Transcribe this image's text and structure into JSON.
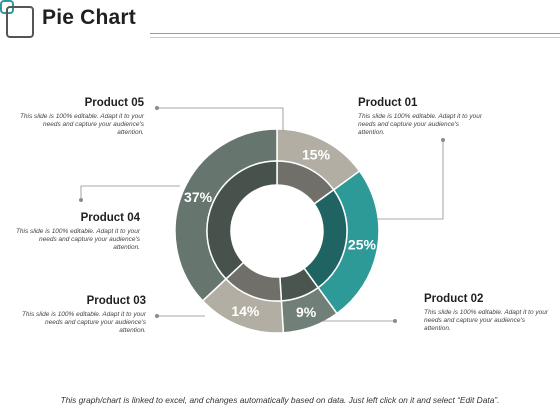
{
  "header": {
    "title": "Pie Chart"
  },
  "footer": {
    "text": "This graph/chart is linked to excel, and changes automatically based on data. Just left click on it and select “Edit Data”."
  },
  "labels": [
    {
      "title": "Product 05",
      "desc": "This slide is 100% editable. Adapt it to your needs and capture your audience's attention."
    },
    {
      "title": "Product 01",
      "desc": "This slide is 100% editable. Adapt it to your needs and capture your audience's attention."
    },
    {
      "title": "Product 04",
      "desc": "This slide is 100% editable. Adapt it to your needs and capture your audience's attention."
    },
    {
      "title": "Product 03",
      "desc": "This slide is 100% editable. Adapt it to your needs and capture your audience's attention."
    },
    {
      "title": "Product 02",
      "desc": "This slide is 100% editable. Adapt it to your needs and capture your audience's attention."
    }
  ],
  "chart_data": {
    "type": "pie",
    "categories": [
      "Product 01",
      "Product 02",
      "Product 03",
      "Product 04",
      "Product 05"
    ],
    "values": [
      15,
      25,
      9,
      14,
      37
    ],
    "value_labels": [
      "15%",
      "25%",
      "9%",
      "14%",
      "37%"
    ],
    "colors": [
      "#b2aea4",
      "#2e9a98",
      "#707f78",
      "#b2aea4",
      "#66766f"
    ],
    "inner_colors": [
      "#716f6a",
      "#1f6362",
      "#4b5550",
      "#716f6a",
      "#47524d"
    ],
    "title": ""
  }
}
